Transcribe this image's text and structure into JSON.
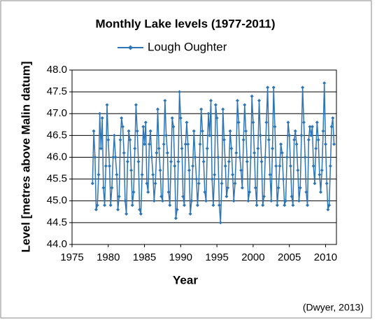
{
  "chart_data": {
    "type": "line",
    "title": "Monthly Lake levels (1977-2011)",
    "xlabel": "Year",
    "ylabel": "Level [metres above Malin datum]",
    "source": "(Dwyer, 2013)",
    "xlim": [
      1975,
      2011.5
    ],
    "xticks": [
      1975,
      1980,
      1985,
      1990,
      1995,
      2000,
      2005,
      2010
    ],
    "ylim": [
      44,
      48
    ],
    "yticks": [
      {
        "value": 44,
        "label": "44.0"
      },
      {
        "value": 44.5,
        "label": "44.5"
      },
      {
        "value": 45,
        "label": "45.0"
      },
      {
        "value": 45.5,
        "label": "45.5"
      },
      {
        "value": 46,
        "label": "46.0"
      },
      {
        "value": 46.5,
        "label": "46.5"
      },
      {
        "value": 47,
        "label": "47.0"
      },
      {
        "value": 47.5,
        "label": "47.5"
      },
      {
        "value": 48,
        "label": "48.0"
      }
    ],
    "grid": true,
    "legend": "top",
    "x": [
      1977.83,
      1978,
      1978.17,
      1978.33,
      1978.5,
      1978.67,
      1978.83,
      1979,
      1979.17,
      1979.33,
      1979.5,
      1979.67,
      1979.83,
      1980,
      1980.17,
      1980.33,
      1980.5,
      1980.67,
      1980.83,
      1981,
      1981.17,
      1981.33,
      1981.5,
      1981.67,
      1981.83,
      1982,
      1982.17,
      1982.33,
      1982.5,
      1982.67,
      1982.83,
      1983,
      1983.17,
      1983.33,
      1983.5,
      1983.67,
      1983.83,
      1984,
      1984.17,
      1984.33,
      1984.5,
      1984.67,
      1984.83,
      1985,
      1985.17,
      1985.33,
      1985.5,
      1985.67,
      1985.83,
      1986,
      1986.17,
      1986.33,
      1986.5,
      1986.67,
      1986.83,
      1987,
      1987.17,
      1987.33,
      1987.5,
      1987.67,
      1987.83,
      1988,
      1988.17,
      1988.33,
      1988.5,
      1988.67,
      1988.83,
      1989,
      1989.17,
      1989.33,
      1989.5,
      1989.67,
      1989.83,
      1990,
      1990.17,
      1990.33,
      1990.5,
      1990.67,
      1990.83,
      1991,
      1991.17,
      1991.33,
      1991.5,
      1991.67,
      1991.83,
      1992,
      1992.17,
      1992.33,
      1992.5,
      1992.67,
      1992.83,
      1993,
      1993.17,
      1993.33,
      1993.5,
      1993.67,
      1993.83,
      1994,
      1994.17,
      1994.33,
      1994.5,
      1994.67,
      1994.83,
      1995,
      1995.17,
      1995.33,
      1995.5,
      1995.67,
      1995.83,
      1996,
      1996.17,
      1996.33,
      1996.5,
      1996.67,
      1996.83,
      1997,
      1997.17,
      1997.33,
      1997.5,
      1997.67,
      1997.83,
      1998,
      1998.17,
      1998.33,
      1998.5,
      1998.67,
      1998.83,
      1999,
      1999.17,
      1999.33,
      1999.5,
      1999.67,
      1999.83,
      2000,
      2000.17,
      2000.33,
      2000.5,
      2000.67,
      2000.83,
      2001,
      2001.17,
      2001.33,
      2001.5,
      2001.67,
      2001.83,
      2002,
      2002.17,
      2002.33,
      2002.5,
      2002.67,
      2002.83,
      2003,
      2003.17,
      2003.33,
      2003.5,
      2003.67,
      2003.83,
      2004,
      2004.17,
      2004.33,
      2004.5,
      2004.67,
      2004.83,
      2005,
      2005.17,
      2005.33,
      2005.5,
      2005.67,
      2005.83,
      2006,
      2006.17,
      2006.33,
      2006.5,
      2006.67,
      2006.83,
      2007,
      2007.17,
      2007.33,
      2007.5,
      2007.67,
      2007.83,
      2008,
      2008.17,
      2008.33,
      2008.5,
      2008.67,
      2008.83,
      2009,
      2009.17,
      2009.33,
      2009.5,
      2009.67,
      2009.83,
      2010,
      2010.17,
      2010.33,
      2010.5,
      2010.67,
      2010.83,
      2011,
      2011.17
    ],
    "series": [
      {
        "name": "Lough Oughter",
        "color": "#2e75b6",
        "values": [
          45.4,
          46.6,
          46.0,
          44.8,
          44.9,
          45.6,
          47.0,
          46.2,
          46.9,
          45.3,
          44.9,
          45.8,
          47.2,
          46.4,
          45.8,
          44.9,
          45.3,
          46.0,
          46.5,
          46.0,
          45.6,
          44.8,
          45.1,
          46.4,
          46.9,
          46.7,
          46.1,
          45.0,
          44.7,
          45.9,
          46.6,
          46.4,
          45.7,
          44.9,
          45.2,
          46.2,
          47.2,
          46.6,
          45.9,
          44.8,
          44.7,
          45.6,
          46.7,
          46.3,
          46.8,
          45.4,
          45.2,
          46.3,
          46.6,
          46.0,
          45.6,
          45.0,
          45.4,
          46.1,
          47.1,
          46.2,
          45.7,
          45.1,
          45.0,
          46.3,
          47.3,
          46.5,
          46.1,
          45.2,
          44.9,
          45.9,
          46.9,
          46.7,
          45.8,
          44.6,
          44.8,
          45.9,
          47.5,
          46.9,
          46.2,
          45.1,
          44.9,
          46.3,
          46.8,
          46.3,
          45.7,
          44.7,
          45.0,
          45.8,
          46.6,
          46.0,
          45.5,
          44.9,
          45.4,
          46.3,
          47.1,
          46.6,
          45.9,
          45.2,
          45.0,
          46.2,
          47.0,
          46.5,
          47.3,
          45.5,
          44.9,
          45.6,
          47.2,
          46.9,
          46.0,
          44.9,
          44.5,
          45.4,
          47.1,
          46.4,
          45.8,
          45.1,
          45.3,
          45.9,
          46.6,
          46.2,
          45.6,
          45.0,
          45.4,
          46.1,
          47.3,
          46.8,
          46.0,
          45.7,
          45.3,
          46.4,
          47.2,
          46.6,
          45.9,
          45.0,
          45.2,
          46.0,
          47.4,
          46.8,
          46.1,
          45.3,
          44.9,
          46.2,
          47.3,
          46.5,
          45.9,
          44.9,
          45.1,
          46.0,
          46.8,
          47.6,
          46.4,
          45.6,
          45.0,
          46.2,
          47.6,
          46.7,
          45.8,
          44.9,
          45.3,
          45.8,
          46.3,
          46.1,
          45.5,
          44.9,
          45.0,
          46.0,
          46.8,
          46.5,
          45.8,
          45.1,
          44.9,
          46.4,
          46.6,
          46.3,
          45.7,
          45.0,
          45.3,
          46.5,
          47.6,
          46.8,
          46.0,
          45.2,
          44.9,
          46.4,
          46.7,
          46.5,
          46.7,
          45.8,
          45.4,
          46.2,
          46.8,
          46.4,
          45.6,
          45.2,
          45.7,
          46.6,
          47.7,
          46.3,
          45.4,
          44.8,
          44.9,
          45.8,
          46.7,
          46.9,
          46.3
        ]
      }
    ]
  }
}
